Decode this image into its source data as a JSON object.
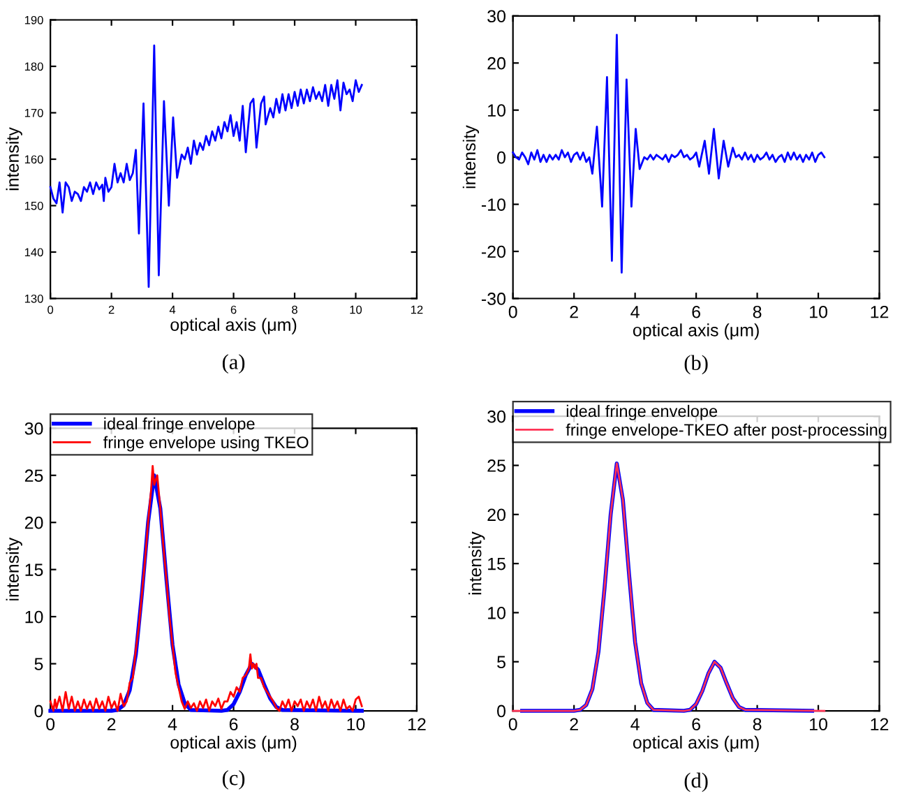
{
  "chart_data": [
    {
      "type": "line",
      "xlabel": "optical axis (μm)",
      "ylabel": "intensity",
      "annotations": [
        "(a)"
      ],
      "xlim": [
        0,
        12
      ],
      "xticks": [
        0,
        2,
        4,
        6,
        8,
        10,
        12
      ],
      "ylim": [
        130,
        190
      ],
      "yticks": [
        130,
        140,
        150,
        160,
        170,
        180,
        190
      ],
      "grid": false,
      "legend": false,
      "series": [
        {
          "color": "#0000ff",
          "x": [
            0,
            0.1,
            0.2,
            0.3,
            0.4,
            0.5,
            0.6,
            0.7,
            0.8,
            0.9,
            1.0,
            1.1,
            1.2,
            1.3,
            1.4,
            1.5,
            1.6,
            1.7,
            1.75,
            1.8,
            1.9,
            2.0,
            2.1,
            2.2,
            2.3,
            2.4,
            2.5,
            2.6,
            2.7,
            2.8,
            2.9,
            3.05,
            3.22,
            3.4,
            3.55,
            3.72,
            3.88,
            4.02,
            4.15,
            4.3,
            4.4,
            4.5,
            4.6,
            4.7,
            4.8,
            4.9,
            5.0,
            5.1,
            5.2,
            5.3,
            5.4,
            5.5,
            5.6,
            5.7,
            5.8,
            5.9,
            6.0,
            6.1,
            6.2,
            6.3,
            6.4,
            6.55,
            6.65,
            6.75,
            6.9,
            7.0,
            7.05,
            7.2,
            7.3,
            7.4,
            7.5,
            7.6,
            7.7,
            7.8,
            7.9,
            8.0,
            8.1,
            8.2,
            8.3,
            8.4,
            8.5,
            8.6,
            8.7,
            8.8,
            8.9,
            9.0,
            9.1,
            9.2,
            9.3,
            9.4,
            9.5,
            9.6,
            9.7,
            9.8,
            9.9,
            10.0,
            10.1,
            10.2
          ],
          "values": [
            154,
            151.5,
            150.5,
            155,
            148.5,
            155,
            154,
            151,
            153,
            152.5,
            151,
            154,
            153,
            155,
            152.5,
            155,
            153.5,
            154.5,
            151,
            156,
            153,
            154,
            159,
            155,
            157,
            155,
            159,
            155.5,
            157,
            162,
            144,
            172,
            132.5,
            184.5,
            135,
            172.5,
            150,
            169,
            156,
            161,
            160,
            162.5,
            159,
            164,
            161,
            163.5,
            162,
            165,
            163,
            166,
            164,
            167,
            164.5,
            168,
            166,
            169.5,
            165,
            168,
            164,
            171.5,
            161.5,
            172,
            173,
            162.5,
            172,
            173.5,
            167.5,
            171,
            169,
            173,
            170,
            174,
            170.5,
            174,
            171,
            174.5,
            171.5,
            175,
            172,
            175,
            172.5,
            175.5,
            173,
            174.5,
            172.5,
            176,
            171.5,
            176,
            173,
            177,
            170.5,
            176.5,
            174,
            175,
            172.5,
            177,
            174.5,
            176
          ]
        }
      ]
    },
    {
      "type": "line",
      "xlabel": "optical axis (μm)",
      "ylabel": "intensity",
      "annotations": [
        "(b)"
      ],
      "xlim": [
        0,
        12
      ],
      "xticks": [
        0,
        2,
        4,
        6,
        8,
        10,
        12
      ],
      "ylim": [
        -30,
        30
      ],
      "yticks": [
        -30,
        -20,
        -10,
        0,
        10,
        20,
        30
      ],
      "grid": false,
      "legend": false,
      "series": [
        {
          "color": "#0000ff",
          "x": [
            0,
            0.1,
            0.2,
            0.3,
            0.4,
            0.5,
            0.6,
            0.7,
            0.8,
            0.9,
            1.0,
            1.1,
            1.2,
            1.3,
            1.4,
            1.5,
            1.6,
            1.7,
            1.8,
            1.9,
            2.0,
            2.1,
            2.2,
            2.3,
            2.4,
            2.5,
            2.6,
            2.75,
            2.92,
            3.08,
            3.24,
            3.4,
            3.56,
            3.72,
            3.88,
            4.02,
            4.15,
            4.3,
            4.4,
            4.5,
            4.6,
            4.7,
            4.8,
            4.9,
            5.0,
            5.1,
            5.2,
            5.3,
            5.4,
            5.5,
            5.6,
            5.7,
            5.8,
            5.9,
            6.0,
            6.1,
            6.28,
            6.42,
            6.58,
            6.74,
            6.9,
            7.05,
            7.2,
            7.3,
            7.4,
            7.5,
            7.6,
            7.7,
            7.8,
            7.9,
            8.0,
            8.1,
            8.2,
            8.3,
            8.4,
            8.5,
            8.6,
            8.7,
            8.8,
            8.9,
            9.0,
            9.1,
            9.2,
            9.3,
            9.4,
            9.5,
            9.6,
            9.7,
            9.8,
            9.9,
            10.0,
            10.1,
            10.2
          ],
          "values": [
            1,
            0,
            -0.5,
            1,
            0,
            -1.5,
            1,
            -0.5,
            1.5,
            -1,
            0.5,
            -1,
            0.5,
            -0.5,
            0.5,
            -0.5,
            1.5,
            0,
            1,
            -1,
            0.5,
            1,
            -0.5,
            1,
            -1,
            0,
            -3.5,
            6.5,
            -10.5,
            17,
            -22,
            26,
            -24.5,
            16.5,
            -10.5,
            6,
            -2.5,
            0,
            -0.5,
            0.5,
            -0.5,
            0.5,
            0,
            -0.5,
            0.5,
            -1,
            0.5,
            0,
            0.5,
            1.5,
            0,
            0.5,
            -0.5,
            0,
            1,
            -2,
            3.5,
            -3.5,
            6,
            -4.5,
            3.5,
            -2,
            2,
            0,
            0.5,
            -0.5,
            1,
            -0.5,
            0.5,
            -1,
            0.5,
            -0.5,
            0,
            1,
            -0.5,
            0.5,
            -1,
            0,
            0.5,
            -1,
            1,
            -0.5,
            1,
            -0.5,
            0.5,
            -1,
            0.5,
            -0.5,
            1,
            -1,
            0.5,
            1,
            0
          ]
        }
      ]
    },
    {
      "type": "line",
      "xlabel": "optical axis (μm)",
      "ylabel": "intensity",
      "annotations": [
        "(c)"
      ],
      "xlim": [
        0,
        12
      ],
      "xticks": [
        0,
        2,
        4,
        6,
        8,
        10,
        12
      ],
      "ylim": [
        0,
        30
      ],
      "yticks": [
        0,
        5,
        10,
        15,
        20,
        25,
        30
      ],
      "grid": false,
      "legend": "top left",
      "series": [
        {
          "name": "ideal fringe envelope",
          "color": "#0000ff",
          "x": [
            0,
            2.0,
            2.2,
            2.4,
            2.6,
            2.8,
            3.0,
            3.2,
            3.4,
            3.6,
            3.8,
            4.0,
            4.2,
            4.4,
            4.6,
            5.6,
            5.8,
            6.0,
            6.2,
            6.4,
            6.6,
            6.8,
            7.0,
            7.2,
            7.4,
            7.6,
            10.2
          ],
          "values": [
            0,
            0,
            0.1,
            0.6,
            2.2,
            6,
            12.5,
            20,
            25,
            21.5,
            14,
            7,
            2.8,
            0.8,
            0.1,
            0,
            0.1,
            0.7,
            2,
            3.8,
            5,
            4.4,
            2.8,
            1.3,
            0.4,
            0.1,
            0
          ]
        },
        {
          "name": "fringe envelope using TKEO",
          "color": "#ff0000",
          "x": [
            0,
            0.1,
            0.15,
            0.2,
            0.3,
            0.4,
            0.5,
            0.6,
            0.7,
            0.8,
            0.9,
            1.0,
            1.1,
            1.2,
            1.3,
            1.4,
            1.5,
            1.6,
            1.7,
            1.8,
            1.9,
            2.0,
            2.1,
            2.2,
            2.3,
            2.4,
            2.5,
            2.6,
            2.7,
            2.8,
            2.9,
            3.0,
            3.1,
            3.2,
            3.3,
            3.35,
            3.4,
            3.5,
            3.6,
            3.7,
            3.8,
            3.9,
            4.0,
            4.1,
            4.2,
            4.3,
            4.4,
            4.5,
            4.6,
            4.7,
            4.8,
            4.9,
            5.0,
            5.1,
            5.2,
            5.3,
            5.4,
            5.5,
            5.6,
            5.7,
            5.8,
            5.9,
            6.0,
            6.1,
            6.2,
            6.3,
            6.4,
            6.5,
            6.55,
            6.6,
            6.65,
            6.7,
            6.75,
            6.8,
            6.9,
            7.0,
            7.1,
            7.2,
            7.3,
            7.4,
            7.5,
            7.6,
            7.7,
            7.8,
            7.9,
            8.0,
            8.1,
            8.2,
            8.3,
            8.4,
            8.5,
            8.6,
            8.7,
            8.8,
            8.9,
            9.0,
            9.1,
            9.2,
            9.3,
            9.4,
            9.5,
            9.6,
            9.7,
            9.8,
            9.9,
            10.0,
            10.1,
            10.2
          ],
          "values": [
            1,
            0,
            1.2,
            0.3,
            1.5,
            0,
            2,
            0.2,
            1.5,
            0,
            1,
            0,
            1.2,
            0.2,
            1,
            0,
            1.3,
            0.2,
            1,
            0,
            1.5,
            0.3,
            1,
            0,
            1.8,
            0.5,
            1,
            3,
            3.5,
            6.5,
            9,
            12.5,
            16,
            20,
            23.5,
            26,
            24,
            25,
            21.5,
            17.5,
            14,
            10,
            7,
            4,
            2.5,
            1,
            0.2,
            1,
            0.3,
            0.8,
            0,
            1,
            0.3,
            1.2,
            0,
            1,
            0.5,
            1.3,
            0.2,
            1,
            1,
            2,
            1.5,
            2.5,
            2,
            3.5,
            3.8,
            4.5,
            6,
            4.5,
            5,
            4.5,
            5,
            3.5,
            3.5,
            2.5,
            2,
            1.5,
            1,
            0.3,
            0,
            1,
            0.3,
            1.2,
            0,
            1,
            0.5,
            1.2,
            0,
            1,
            0.3,
            1.2,
            0,
            1.5,
            0.3,
            1,
            0,
            1.2,
            0.3,
            1,
            0,
            1.2,
            0.2,
            0.5,
            0,
            1.2,
            1.5,
            0.5
          ]
        }
      ]
    },
    {
      "type": "line",
      "xlabel": "optical axis (μm)",
      "ylabel": "intensity",
      "annotations": [
        "(d)"
      ],
      "xlim": [
        0,
        12
      ],
      "xticks": [
        0,
        2,
        4,
        6,
        8,
        10,
        12
      ],
      "ylim": [
        0,
        30
      ],
      "yticks": [
        0,
        5,
        10,
        15,
        20,
        25,
        30
      ],
      "grid": false,
      "legend": "top left",
      "series": [
        {
          "name": "ideal fringe envelope",
          "color": "#0000ff",
          "x": [
            0.3,
            2.0,
            2.2,
            2.4,
            2.6,
            2.8,
            3.0,
            3.2,
            3.4,
            3.6,
            3.8,
            4.0,
            4.2,
            4.4,
            4.6,
            5.6,
            5.8,
            6.0,
            6.2,
            6.4,
            6.6,
            6.8,
            7.0,
            7.2,
            7.4,
            7.6,
            9.8
          ],
          "values": [
            0,
            0,
            0.1,
            0.6,
            2.2,
            6,
            12.5,
            20,
            25.2,
            21.5,
            14,
            7,
            2.8,
            0.8,
            0.1,
            0,
            0.1,
            0.7,
            2,
            3.8,
            5,
            4.4,
            2.8,
            1.3,
            0.4,
            0.1,
            0
          ]
        },
        {
          "name": "fringe envelope-TKEO after post-processing",
          "color": "#ff3355",
          "x": [
            0,
            2.0,
            2.2,
            2.4,
            2.6,
            2.8,
            3.0,
            3.2,
            3.4,
            3.6,
            3.8,
            4.0,
            4.2,
            4.4,
            4.6,
            5.6,
            5.8,
            6.0,
            6.2,
            6.4,
            6.6,
            6.8,
            7.0,
            7.2,
            7.4,
            7.6,
            10.2
          ],
          "values": [
            0,
            0,
            0.1,
            0.6,
            2.2,
            6,
            12.5,
            20,
            25.2,
            21.5,
            14,
            7,
            2.8,
            0.8,
            0.1,
            0,
            0.1,
            0.7,
            2,
            3.8,
            5,
            4.4,
            2.8,
            1.3,
            0.4,
            0.1,
            0
          ]
        }
      ]
    }
  ]
}
